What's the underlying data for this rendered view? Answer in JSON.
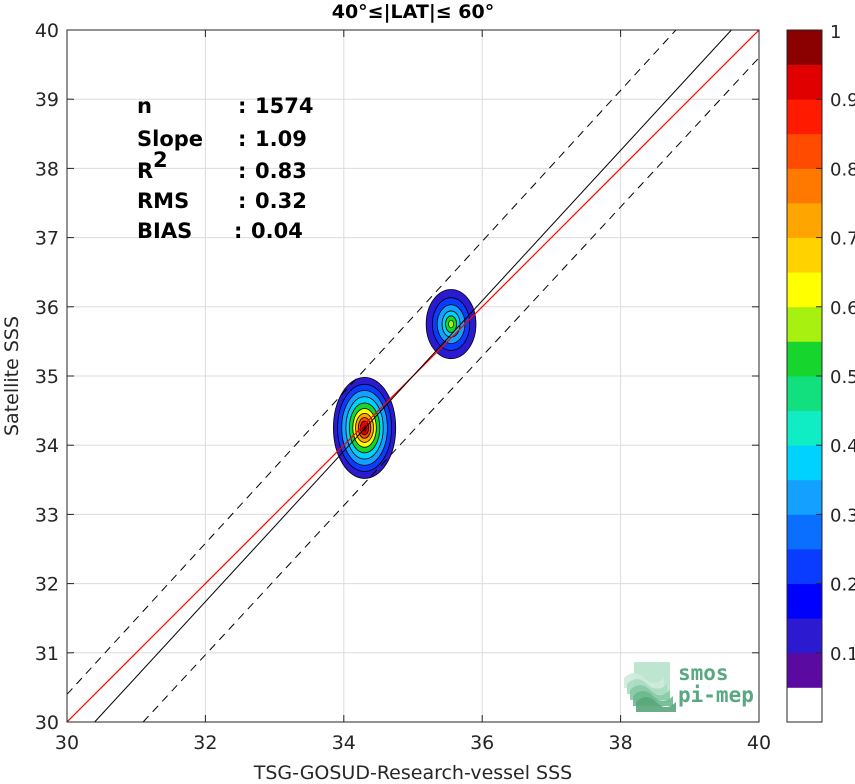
{
  "chart_data": {
    "type": "scatter",
    "title": "40°≤|LAT|≤ 60°",
    "xlabel": "TSG-GOSUD-Research-vessel SSS",
    "ylabel": "Satellite SSS",
    "xlim": [
      30,
      40
    ],
    "ylim": [
      30,
      40
    ],
    "xticks": [
      "30",
      "32",
      "34",
      "36",
      "38",
      "40"
    ],
    "yticks": [
      "30",
      "31",
      "32",
      "33",
      "34",
      "35",
      "36",
      "37",
      "38",
      "39",
      "40"
    ],
    "grid": true,
    "stats": [
      {
        "label": "n",
        "sep": ": ",
        "value": "1574"
      },
      {
        "label": "Slope",
        "sep": ": ",
        "value": "1.09"
      },
      {
        "label": "R",
        "sup": "2",
        "sep": ": ",
        "value": "0.83"
      },
      {
        "label": "RMS",
        "sep": ": ",
        "value": "0.32"
      },
      {
        "label": "BIAS",
        "sep": ": ",
        "value": "0.04"
      }
    ],
    "identity_line": {
      "intercept": 0,
      "slope": 1,
      "color": "#ff0000"
    },
    "regression_line": {
      "slope": 1.09,
      "points": [
        [
          30.4,
          30
        ],
        [
          39.6,
          40
        ]
      ],
      "color": "#000000"
    },
    "envelope_lines": {
      "offset": 1,
      "points_upper": [
        [
          30,
          30.4
        ],
        [
          38.8,
          40
        ]
      ],
      "points_lower": [
        [
          31.1,
          30
        ],
        [
          40,
          39.6
        ]
      ],
      "color": "#000000",
      "dash": true
    },
    "density_clusters": [
      {
        "name": "",
        "cx": 34.3,
        "cy": 34.25,
        "peak": 0.95,
        "levels": [
          {
            "level": 0.05,
            "rx": 0.45,
            "ry": 0.73
          },
          {
            "level": 0.15,
            "rx": 0.39,
            "ry": 0.63
          },
          {
            "level": 0.25,
            "rx": 0.33,
            "ry": 0.54
          },
          {
            "level": 0.35,
            "rx": 0.27,
            "ry": 0.45
          },
          {
            "level": 0.45,
            "rx": 0.22,
            "ry": 0.36
          },
          {
            "level": 0.55,
            "rx": 0.17,
            "ry": 0.28
          },
          {
            "level": 0.65,
            "rx": 0.13,
            "ry": 0.21
          },
          {
            "level": 0.75,
            "rx": 0.09,
            "ry": 0.15
          },
          {
            "level": 0.85,
            "rx": 0.06,
            "ry": 0.1
          }
        ]
      },
      {
        "name": "",
        "cx": 35.55,
        "cy": 35.75,
        "peak": 0.55,
        "levels": [
          {
            "level": 0.05,
            "rx": 0.36,
            "ry": 0.5
          },
          {
            "level": 0.15,
            "rx": 0.27,
            "ry": 0.38
          },
          {
            "level": 0.25,
            "rx": 0.2,
            "ry": 0.28
          },
          {
            "level": 0.35,
            "rx": 0.13,
            "ry": 0.19
          },
          {
            "level": 0.45,
            "rx": 0.08,
            "ry": 0.12
          }
        ]
      }
    ],
    "colorbar": {
      "range": [
        0,
        1
      ],
      "ticks": [
        "0.1",
        "0.2",
        "0.3",
        "0.4",
        "0.5",
        "0.6",
        "0.7",
        "0.8",
        "0.9",
        "1"
      ],
      "colors": [
        "#ffffff",
        "#5a0aa0",
        "#2b1ad0",
        "#0000ff",
        "#0a3cff",
        "#0a6eff",
        "#13a0ff",
        "#00d2ff",
        "#10ecc4",
        "#12e07e",
        "#16d52c",
        "#a8f010",
        "#ffff00",
        "#ffd200",
        "#ffa500",
        "#ff7800",
        "#ff4b00",
        "#ff1a00",
        "#e00000",
        "#8b0000"
      ]
    },
    "logo": {
      "line1": "smos",
      "line2": "pi-mep"
    }
  }
}
